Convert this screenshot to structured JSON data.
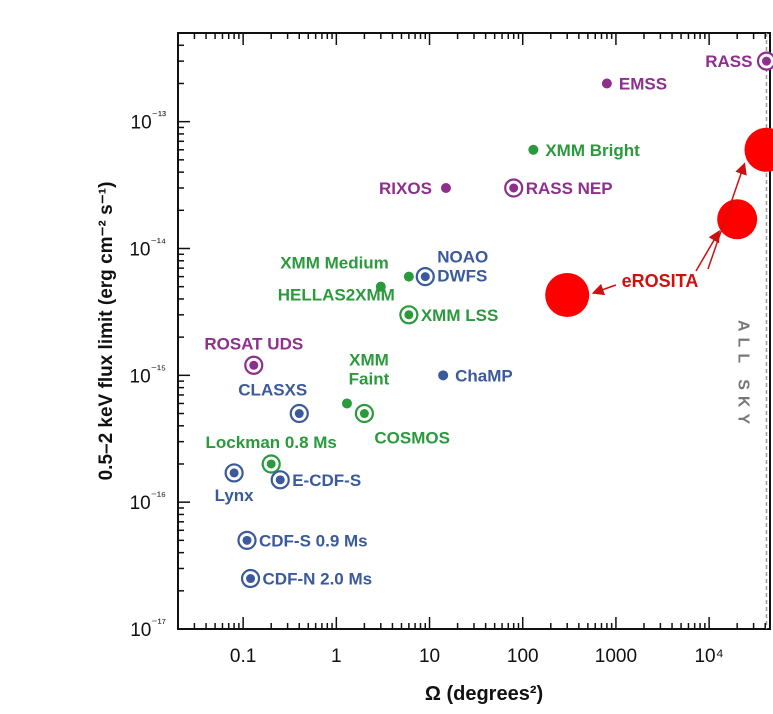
{
  "chart_data": {
    "type": "scatter",
    "xlabel": "Ω (degrees²)",
    "ylabel": "0.5–2 keV flux limit (erg cm⁻² s⁻¹)",
    "xscale": "log",
    "yscale": "log",
    "xlim": [
      0.02,
      45000
    ],
    "ylim": [
      1e-17,
      5e-13
    ],
    "x_ticks": [
      {
        "value": 0.1,
        "label": "0.1"
      },
      {
        "value": 1,
        "label": "1"
      },
      {
        "value": 10,
        "label": "10"
      },
      {
        "value": 100,
        "label": "100"
      },
      {
        "value": 1000,
        "label": "1000"
      },
      {
        "value": 10000,
        "label": "10⁴"
      }
    ],
    "y_ticks": [
      {
        "value": 1e-17,
        "label": "10⁻¹⁷"
      },
      {
        "value": 1e-16,
        "label": "10⁻¹⁶"
      },
      {
        "value": 1e-15,
        "label": "10⁻¹⁵"
      },
      {
        "value": 1e-14,
        "label": "10⁻¹⁴"
      },
      {
        "value": 1e-13,
        "label": "10⁻¹³"
      }
    ],
    "all_sky": {
      "x": 41253,
      "label": "ALL SKY"
    },
    "colors": {
      "purple": "#8e2f8e",
      "green": "#2a9a3c",
      "blue": "#3a5a9c",
      "red": "#ff0000",
      "darkred": "#cc1111"
    },
    "points": [
      {
        "name": "RASS",
        "x": 41253,
        "y": 3e-13,
        "color": "purple",
        "style": "ring",
        "label_pos": "left"
      },
      {
        "name": "EMSS",
        "x": 800,
        "y": 2e-13,
        "color": "purple",
        "style": "dot",
        "label_pos": "right"
      },
      {
        "name": "XMM Bright",
        "x": 130,
        "y": 6e-14,
        "color": "green",
        "style": "dot",
        "label_pos": "right"
      },
      {
        "name": "RIXOS",
        "x": 15,
        "y": 3e-14,
        "color": "purple",
        "style": "dot",
        "label_pos": "left"
      },
      {
        "name": "RASS NEP",
        "x": 80,
        "y": 3e-14,
        "color": "purple",
        "style": "ring",
        "label_pos": "right"
      },
      {
        "name": "XMM Medium",
        "x": 3,
        "y": 5e-15,
        "color": "green",
        "style": "dot",
        "label_pos": "above-left"
      },
      {
        "name": "HELLAS2XMM",
        "x": 6,
        "y": 6e-15,
        "color": "green",
        "style": "dot",
        "label_pos": "below-left"
      },
      {
        "name": "NOAO DWFS",
        "x": 9,
        "y": 6e-15,
        "color": "blue",
        "style": "ring",
        "label_pos": "right-stack"
      },
      {
        "name": "XMM LSS",
        "x": 6,
        "y": 3e-15,
        "color": "green",
        "style": "ring",
        "label_pos": "right"
      },
      {
        "name": "ROSAT UDS",
        "x": 0.13,
        "y": 1.2e-15,
        "color": "purple",
        "style": "ring",
        "label_pos": "above"
      },
      {
        "name": "ChaMP",
        "x": 14,
        "y": 1e-15,
        "color": "blue",
        "style": "dot",
        "label_pos": "right"
      },
      {
        "name": "XMM Faint",
        "x": 1.3,
        "y": 6e-16,
        "color": "green",
        "style": "dot",
        "label_pos": "above-right-stack"
      },
      {
        "name": "CLASXS",
        "x": 0.4,
        "y": 5e-16,
        "color": "blue",
        "style": "ring",
        "label_pos": "above-left"
      },
      {
        "name": "COSMOS",
        "x": 2,
        "y": 5e-16,
        "color": "green",
        "style": "ring",
        "label_pos": "below-right"
      },
      {
        "name": "Lockman 0.8 Ms",
        "x": 0.2,
        "y": 2e-16,
        "color": "green",
        "style": "ring",
        "label_pos": "above"
      },
      {
        "name": "Lynx",
        "x": 0.08,
        "y": 1.7e-16,
        "color": "blue",
        "style": "ring",
        "label_pos": "below"
      },
      {
        "name": "E-CDF-S",
        "x": 0.25,
        "y": 1.5e-16,
        "color": "blue",
        "style": "ring",
        "label_pos": "right"
      },
      {
        "name": "CDF-S 0.9 Ms",
        "x": 0.11,
        "y": 5e-17,
        "color": "blue",
        "style": "ring",
        "label_pos": "right"
      },
      {
        "name": "CDF-N 2.0 Ms",
        "x": 0.12,
        "y": 2.5e-17,
        "color": "blue",
        "style": "ring",
        "label_pos": "right"
      }
    ],
    "erosita": {
      "label": "eROSITA",
      "points": [
        {
          "x": 300,
          "y": 4.3e-15
        },
        {
          "x": 20000,
          "y": 1.7e-14
        },
        {
          "x": 41253,
          "y": 6e-14
        }
      ]
    }
  }
}
